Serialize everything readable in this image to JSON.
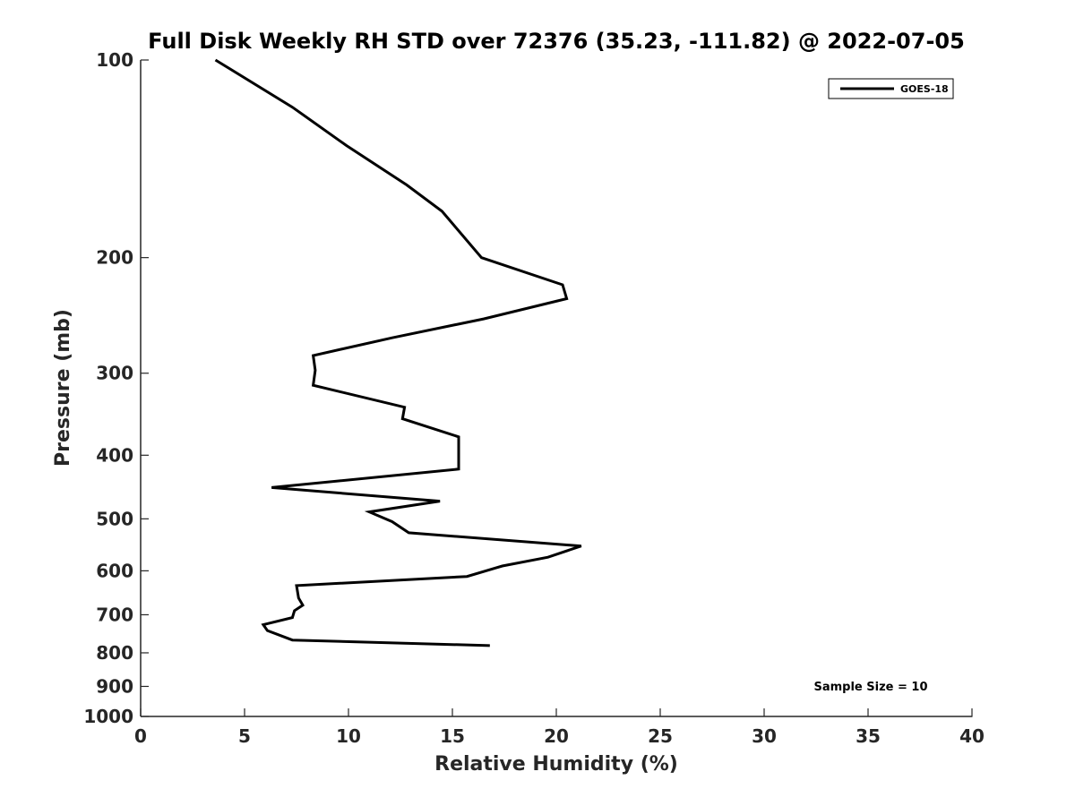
{
  "chart_data": {
    "type": "line",
    "title": "Full Disk Weekly RH STD over 72376 (35.23, -111.82) @ 2022-07-05",
    "xlabel": "Relative Humidity (%)",
    "ylabel": "Pressure (mb)",
    "xlim": [
      0,
      40
    ],
    "ylim": [
      100,
      1000
    ],
    "y_scale": "log",
    "y_reversed": true,
    "x_ticks": [
      0,
      5,
      10,
      15,
      20,
      25,
      30,
      35,
      40
    ],
    "y_ticks": [
      100,
      200,
      300,
      400,
      500,
      600,
      700,
      800,
      900,
      1000
    ],
    "grid": false,
    "legend_position": "top-right",
    "annotation": "Sample Size = 10",
    "series": [
      {
        "name": "GOES-18",
        "color": "#000000",
        "x": [
          3.6,
          7.3,
          9.9,
          12.8,
          14.5,
          16.4,
          20.3,
          20.5,
          16.5,
          12.1,
          8.3,
          8.4,
          8.3,
          12.7,
          12.6,
          15.3,
          15.3,
          15.3,
          6.3,
          14.4,
          11.0,
          12.1,
          12.9,
          21.2,
          19.6,
          17.4,
          15.7,
          7.5,
          7.6,
          7.8,
          7.4,
          7.3,
          5.9,
          6.1,
          7.3,
          16.8
        ],
        "y": [
          100,
          118,
          135,
          155,
          170,
          200,
          220,
          231,
          248,
          265,
          282,
          297,
          313,
          338,
          352,
          375,
          400,
          420,
          448,
          470,
          488,
          505,
          525,
          550,
          572,
          590,
          612,
          632,
          660,
          677,
          690,
          707,
          725,
          740,
          765,
          780
        ]
      }
    ]
  }
}
